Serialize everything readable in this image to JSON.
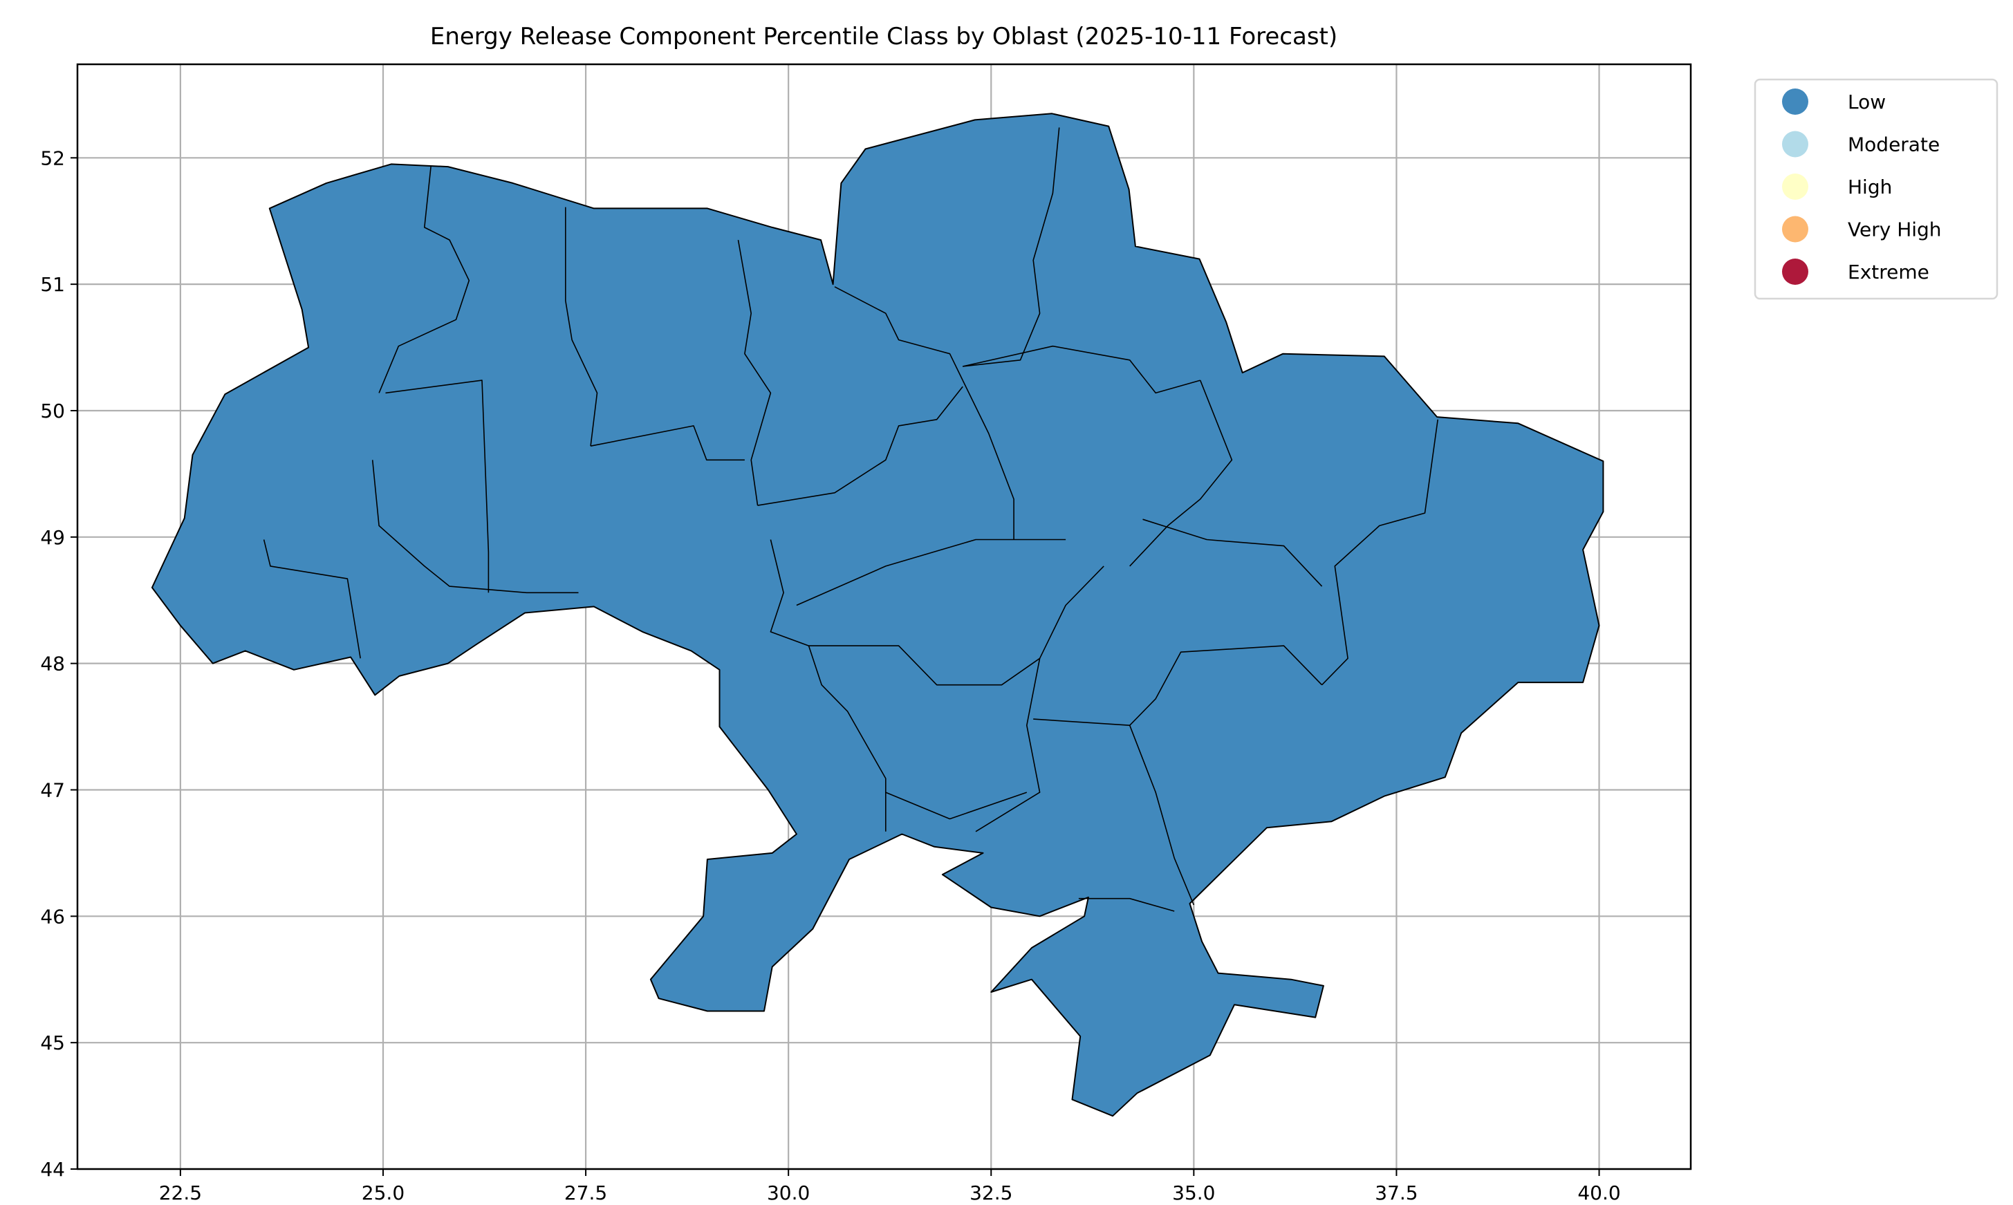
{
  "chart_data": {
    "type": "choropleth",
    "title": "Energy Release Component Percentile Class by Oblast (2025-10-11 Forecast)",
    "xlabel": "",
    "ylabel": "",
    "xlim": [
      21.23,
      41.13
    ],
    "ylim": [
      44.0,
      52.74
    ],
    "xticks": [
      22.5,
      25.0,
      27.5,
      30.0,
      32.5,
      35.0,
      37.5,
      40.0
    ],
    "xtick_labels": [
      "22.5",
      "25.0",
      "27.5",
      "30.0",
      "32.5",
      "35.0",
      "37.5",
      "40.0"
    ],
    "yticks": [
      44,
      45,
      46,
      47,
      48,
      49,
      50,
      51,
      52
    ],
    "ytick_labels": [
      "44",
      "45",
      "46",
      "47",
      "48",
      "49",
      "50",
      "51",
      "52"
    ],
    "grid": true,
    "legend_placement": "outside-top-right",
    "legend": [
      {
        "label": "Low",
        "color": "#4189bd"
      },
      {
        "label": "Moderate",
        "color": "#b2dbe9"
      },
      {
        "label": "High",
        "color": "#ffffc6"
      },
      {
        "label": "Very High",
        "color": "#fdb770"
      },
      {
        "label": "Extreme",
        "color": "#ae193b"
      }
    ],
    "all_regions_class": "Low",
    "fill_color": "#4189bd",
    "border_color": "#000000",
    "outline": [
      [
        22.15,
        48.6
      ],
      [
        22.55,
        49.15
      ],
      [
        22.65,
        49.65
      ],
      [
        23.05,
        50.13
      ],
      [
        24.08,
        50.5
      ],
      [
        24.0,
        50.8
      ],
      [
        23.6,
        51.6
      ],
      [
        24.3,
        51.8
      ],
      [
        25.1,
        51.95
      ],
      [
        25.8,
        51.93
      ],
      [
        26.6,
        51.8
      ],
      [
        27.6,
        51.6
      ],
      [
        28.2,
        51.6
      ],
      [
        29.0,
        51.6
      ],
      [
        29.8,
        51.45
      ],
      [
        30.4,
        51.35
      ],
      [
        30.55,
        51.0
      ],
      [
        30.65,
        51.8
      ],
      [
        30.95,
        52.07
      ],
      [
        32.3,
        52.3
      ],
      [
        33.25,
        52.35
      ],
      [
        33.95,
        52.25
      ],
      [
        34.2,
        51.75
      ],
      [
        34.28,
        51.3
      ],
      [
        35.07,
        51.2
      ],
      [
        35.4,
        50.7
      ],
      [
        35.6,
        50.3
      ],
      [
        36.1,
        50.45
      ],
      [
        37.35,
        50.43
      ],
      [
        38.0,
        49.95
      ],
      [
        39.0,
        49.9
      ],
      [
        40.05,
        49.6
      ],
      [
        40.05,
        49.2
      ],
      [
        39.8,
        48.9
      ],
      [
        40.0,
        48.3
      ],
      [
        39.8,
        47.85
      ],
      [
        39.0,
        47.85
      ],
      [
        38.3,
        47.45
      ],
      [
        38.1,
        47.1
      ],
      [
        37.35,
        46.95
      ],
      [
        36.7,
        46.75
      ],
      [
        35.9,
        46.7
      ],
      [
        34.95,
        46.1
      ],
      [
        35.1,
        45.8
      ],
      [
        35.3,
        45.55
      ],
      [
        36.2,
        45.5
      ],
      [
        36.6,
        45.45
      ],
      [
        36.5,
        45.2
      ],
      [
        35.5,
        45.3
      ],
      [
        35.2,
        44.9
      ],
      [
        34.3,
        44.6
      ],
      [
        34.0,
        44.42
      ],
      [
        33.5,
        44.55
      ],
      [
        33.6,
        45.05
      ],
      [
        33.0,
        45.5
      ],
      [
        32.5,
        45.4
      ],
      [
        33.0,
        45.75
      ],
      [
        33.65,
        46.0
      ],
      [
        33.7,
        46.15
      ],
      [
        33.1,
        46.0
      ],
      [
        32.5,
        46.07
      ],
      [
        31.9,
        46.33
      ],
      [
        32.4,
        46.5
      ],
      [
        31.8,
        46.55
      ],
      [
        31.4,
        46.65
      ],
      [
        30.75,
        46.45
      ],
      [
        30.3,
        45.9
      ],
      [
        29.8,
        45.6
      ],
      [
        29.7,
        45.25
      ],
      [
        29.0,
        45.25
      ],
      [
        28.4,
        45.35
      ],
      [
        28.3,
        45.5
      ],
      [
        28.95,
        46.0
      ],
      [
        29.0,
        46.45
      ],
      [
        29.8,
        46.5
      ],
      [
        30.1,
        46.65
      ],
      [
        29.75,
        47.0
      ],
      [
        29.45,
        47.25
      ],
      [
        29.15,
        47.5
      ],
      [
        29.15,
        47.95
      ],
      [
        28.8,
        48.1
      ],
      [
        28.2,
        48.25
      ],
      [
        27.6,
        48.45
      ],
      [
        26.75,
        48.4
      ],
      [
        26.15,
        48.15
      ],
      [
        25.8,
        48.0
      ],
      [
        25.2,
        47.9
      ],
      [
        24.9,
        47.75
      ],
      [
        24.6,
        48.05
      ],
      [
        23.9,
        47.95
      ],
      [
        23.3,
        48.1
      ],
      [
        22.9,
        48.0
      ],
      [
        22.5,
        48.3
      ]
    ],
    "internal_borders": [
      [
        [
          25.59,
          51.93
        ],
        [
          25.51,
          51.45
        ],
        [
          25.82,
          51.35
        ],
        [
          26.06,
          51.03
        ],
        [
          25.9,
          50.72
        ],
        [
          25.19,
          50.51
        ],
        [
          24.95,
          50.14
        ]
      ],
      [
        [
          27.25,
          51.61
        ],
        [
          27.25,
          50.87
        ],
        [
          27.33,
          50.56
        ],
        [
          27.64,
          50.14
        ],
        [
          27.56,
          49.72
        ]
      ],
      [
        [
          27.56,
          49.72
        ],
        [
          28.83,
          49.88
        ],
        [
          28.99,
          49.61
        ],
        [
          29.46,
          49.61
        ]
      ],
      [
        [
          29.38,
          51.35
        ],
        [
          29.54,
          50.77
        ],
        [
          29.46,
          50.45
        ],
        [
          29.78,
          50.14
        ],
        [
          29.54,
          49.61
        ],
        [
          29.62,
          49.25
        ]
      ],
      [
        [
          25.03,
          50.14
        ],
        [
          26.22,
          50.24
        ],
        [
          26.3,
          48.88
        ],
        [
          26.3,
          48.56
        ]
      ],
      [
        [
          23.53,
          48.98
        ],
        [
          23.61,
          48.77
        ],
        [
          24.56,
          48.67
        ],
        [
          24.72,
          48.04
        ]
      ],
      [
        [
          24.87,
          49.61
        ],
        [
          24.95,
          49.09
        ],
        [
          25.51,
          48.77
        ],
        [
          25.82,
          48.61
        ],
        [
          26.77,
          48.56
        ],
        [
          27.41,
          48.56
        ]
      ],
      [
        [
          30.57,
          50.98
        ],
        [
          31.2,
          50.77
        ],
        [
          31.36,
          50.56
        ],
        [
          31.99,
          50.45
        ],
        [
          32.15,
          50.24
        ]
      ],
      [
        [
          32.15,
          50.24
        ],
        [
          32.47,
          49.82
        ],
        [
          32.78,
          49.3
        ],
        [
          32.78,
          48.98
        ]
      ],
      [
        [
          33.34,
          52.24
        ],
        [
          33.26,
          51.72
        ],
        [
          33.02,
          51.19
        ],
        [
          33.1,
          50.77
        ],
        [
          32.86,
          50.4
        ],
        [
          32.15,
          50.35
        ]
      ],
      [
        [
          32.15,
          50.35
        ],
        [
          33.26,
          50.51
        ],
        [
          34.21,
          50.4
        ],
        [
          34.53,
          50.14
        ],
        [
          35.08,
          50.24
        ]
      ],
      [
        [
          35.08,
          50.24
        ],
        [
          35.47,
          49.61
        ],
        [
          35.08,
          49.3
        ],
        [
          34.68,
          49.09
        ],
        [
          34.21,
          48.77
        ]
      ],
      [
        [
          38.01,
          49.93
        ],
        [
          37.85,
          49.19
        ],
        [
          37.29,
          49.09
        ],
        [
          36.74,
          48.77
        ],
        [
          36.9,
          48.04
        ],
        [
          36.58,
          47.83
        ]
      ],
      [
        [
          34.37,
          49.14
        ],
        [
          35.16,
          48.98
        ],
        [
          36.11,
          48.93
        ],
        [
          36.58,
          48.61
        ]
      ],
      [
        [
          29.62,
          49.25
        ],
        [
          30.57,
          49.35
        ],
        [
          31.2,
          49.61
        ],
        [
          31.36,
          49.88
        ],
        [
          31.83,
          49.93
        ],
        [
          32.15,
          50.19
        ]
      ],
      [
        [
          29.78,
          48.98
        ],
        [
          29.94,
          48.56
        ],
        [
          29.78,
          48.25
        ],
        [
          30.25,
          48.14
        ],
        [
          31.36,
          48.14
        ],
        [
          31.83,
          47.83
        ],
        [
          32.63,
          47.83
        ],
        [
          33.1,
          48.04
        ],
        [
          33.42,
          48.46
        ],
        [
          33.89,
          48.77
        ]
      ],
      [
        [
          30.1,
          48.46
        ],
        [
          31.2,
          48.77
        ],
        [
          32.31,
          48.98
        ],
        [
          33.42,
          48.98
        ]
      ],
      [
        [
          30.25,
          48.14
        ],
        [
          30.41,
          47.83
        ],
        [
          30.73,
          47.62
        ],
        [
          31.2,
          47.09
        ],
        [
          31.2,
          46.67
        ]
      ],
      [
        [
          33.1,
          48.04
        ],
        [
          32.94,
          47.51
        ],
        [
          33.1,
          46.98
        ],
        [
          32.31,
          46.67
        ]
      ],
      [
        [
          33.02,
          47.56
        ],
        [
          34.21,
          47.51
        ],
        [
          34.53,
          47.72
        ],
        [
          34.84,
          48.09
        ],
        [
          36.11,
          48.14
        ],
        [
          36.58,
          47.83
        ]
      ],
      [
        [
          34.21,
          47.51
        ],
        [
          34.53,
          46.98
        ],
        [
          34.76,
          46.46
        ],
        [
          35.0,
          46.09
        ]
      ],
      [
        [
          31.2,
          46.98
        ],
        [
          31.99,
          46.77
        ],
        [
          32.94,
          46.98
        ]
      ],
      [
        [
          33.58,
          46.14
        ],
        [
          34.21,
          46.14
        ],
        [
          34.76,
          46.04
        ]
      ]
    ]
  }
}
